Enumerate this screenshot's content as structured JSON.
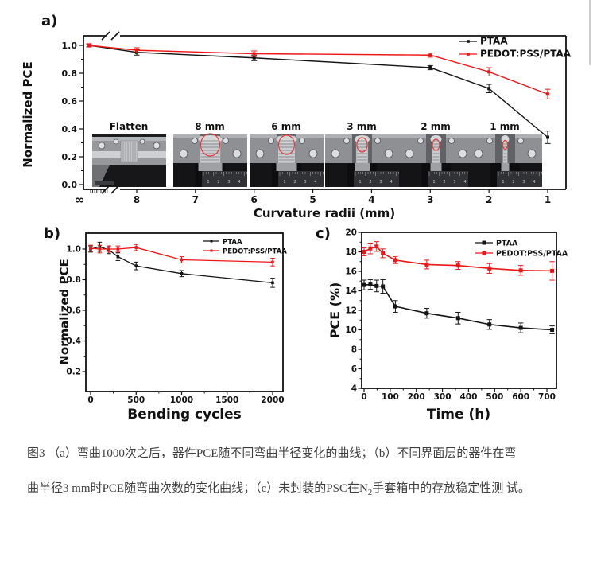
{
  "window": {
    "background": "#ffffff",
    "scrollbar_color": "#cccccc"
  },
  "colors": {
    "ptaa": "#141414",
    "pedot": "#ee1516"
  },
  "chart_data": [
    {
      "panel": "a",
      "panel_label": "a)",
      "type": "line",
      "xlabel": "Curvature radii (mm)",
      "ylabel": "Normalized PCE",
      "xticks": [
        "∞",
        "8",
        "7",
        "6",
        "5",
        "4",
        "3",
        "2",
        "1"
      ],
      "yticks": [
        1.0,
        0.8,
        0.6,
        0.4,
        0.2,
        0.0
      ],
      "ylim": [
        0,
        1.07
      ],
      "x_axis_note": "reversed axis with break between ∞ and 8",
      "legend_position": "top-right",
      "series": [
        {
          "name": "PTAA",
          "color_key": "ptaa",
          "x": [
            "∞",
            8,
            6,
            3,
            2,
            1
          ],
          "y": [
            1.0,
            0.95,
            0.91,
            0.84,
            0.69,
            0.34
          ],
          "yerr": [
            0.01,
            0.02,
            0.02,
            0.015,
            0.03,
            0.045
          ]
        },
        {
          "name": "PEDOT:PSS/PTAA",
          "color_key": "pedot",
          "x": [
            "∞",
            8,
            6,
            3,
            2,
            1
          ],
          "y": [
            1.0,
            0.965,
            0.94,
            0.93,
            0.81,
            0.65
          ],
          "yerr": [
            0.012,
            0.018,
            0.02,
            0.015,
            0.03,
            0.035
          ]
        }
      ],
      "insets": {
        "labels": [
          "Flatten",
          "8 mm",
          "6 mm",
          "3 mm",
          "2 mm",
          "1 mm"
        ],
        "ruler_numbers": [
          "1",
          "2",
          "3",
          "4"
        ]
      }
    },
    {
      "panel": "b",
      "panel_label": "b)",
      "type": "line",
      "xlabel": "Bending cycles",
      "ylabel": "Normalized PCE",
      "xticks": [
        0,
        500,
        1000,
        1500,
        2000
      ],
      "yticks": [
        1.0,
        0.8,
        0.6,
        0.4,
        0.2
      ],
      "xlim": [
        -60,
        2130
      ],
      "ylim": [
        0.1,
        1.09
      ],
      "legend_position": "top-right",
      "series": [
        {
          "name": "PTAA",
          "color_key": "ptaa",
          "x": [
            0,
            100,
            200,
            300,
            500,
            1000,
            2000
          ],
          "y": [
            1.0,
            1.015,
            0.995,
            0.95,
            0.89,
            0.84,
            0.78
          ],
          "yerr": [
            0.02,
            0.03,
            0.025,
            0.025,
            0.025,
            0.02,
            0.03
          ]
        },
        {
          "name": "PEDOT:PSS/PTAA",
          "color_key": "pedot",
          "x": [
            0,
            100,
            200,
            300,
            500,
            1000,
            2000
          ],
          "y": [
            1.005,
            1.0,
            1.0,
            1.0,
            1.01,
            0.93,
            0.915
          ],
          "yerr": [
            0.02,
            0.025,
            0.02,
            0.02,
            0.02,
            0.02,
            0.025
          ]
        }
      ]
    },
    {
      "panel": "c",
      "panel_label": "c)",
      "type": "line",
      "xlabel": "Time (h)",
      "ylabel": "PCE (%)",
      "xticks": [
        0,
        100,
        200,
        300,
        400,
        500,
        600,
        700
      ],
      "yticks": [
        20,
        18,
        16,
        14,
        12,
        10,
        8,
        6,
        4
      ],
      "xlim": [
        -15,
        755
      ],
      "ylim": [
        4,
        20
      ],
      "legend_position": "top-right",
      "series": [
        {
          "name": "PTAA",
          "color_key": "ptaa",
          "x": [
            0,
            24,
            48,
            72,
            120,
            240,
            360,
            480,
            600,
            720
          ],
          "y": [
            14.6,
            14.65,
            14.5,
            14.45,
            12.4,
            11.7,
            11.2,
            10.55,
            10.2,
            10.0
          ],
          "yerr": [
            0.5,
            0.5,
            0.6,
            0.7,
            0.6,
            0.5,
            0.6,
            0.5,
            0.5,
            0.4
          ]
        },
        {
          "name": "PEDOT:PSS/PTAA",
          "color_key": "pedot",
          "x": [
            0,
            24,
            48,
            72,
            120,
            240,
            360,
            480,
            600,
            720
          ],
          "y": [
            18.0,
            18.35,
            18.55,
            17.85,
            17.15,
            16.7,
            16.6,
            16.3,
            16.1,
            16.05
          ],
          "yerr": [
            0.4,
            0.55,
            0.5,
            0.45,
            0.35,
            0.45,
            0.4,
            0.5,
            0.5,
            0.95
          ]
        }
      ]
    }
  ],
  "caption": {
    "lines": [
      {
        "text": "图3 （a）弯曲1000次之后，器件PCE随不同弯曲半径变化的曲线；（b）不同界面层的器件在弯"
      },
      {
        "text": "曲半径3 mm时PCE随弯曲次数的变化曲线；（c）未封装的PSC在N",
        "sub": "2",
        "after": "手套箱中的存放稳定性测"
      },
      {
        "text": "试。"
      }
    ]
  }
}
